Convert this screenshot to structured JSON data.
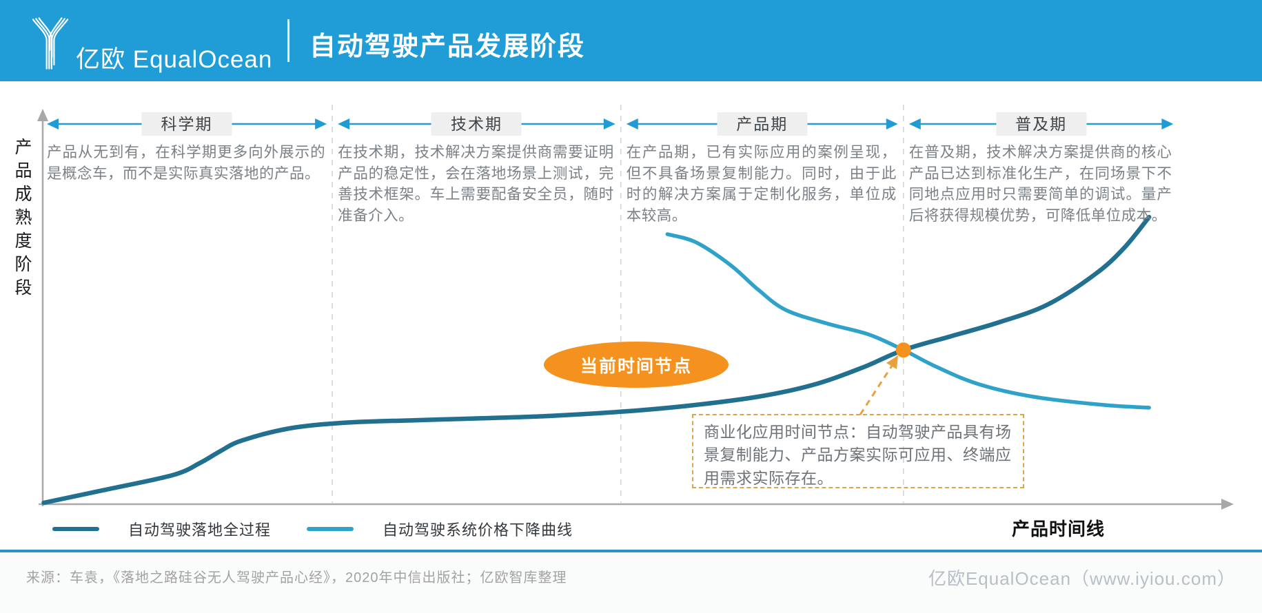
{
  "header": {
    "brand": "亿欧 EqualOcean",
    "title": "自动驾驶产品发展阶段"
  },
  "axes": {
    "y_label": "产品成熟度阶段",
    "x_label": "产品时间线"
  },
  "phases": [
    {
      "label": "科学期",
      "description": "产品从无到有，在科学期更多向外展示的是概念车，而不是实际真实落地的产品。"
    },
    {
      "label": "技术期",
      "description": "在技术期，技术解决方案提供商需要证明产品的稳定性，会在落地场景上测试，完善技术框架。车上需要配备安全员，随时准备介入。"
    },
    {
      "label": "产品期",
      "description": "在产品期，已有实际应用的案例呈现，但不具备场景复制能力。同时，由于此时的解决方案属于定制化服务，单位成本较高。"
    },
    {
      "label": "普及期",
      "description": "在普及期，技术解决方案提供商的核心产品已达到标准化生产，在同场景下不同地点应用时只需要简单的调试。量产后将获得规模优势，可降低单位成本。"
    }
  ],
  "annotations": {
    "current_node": "当前时间节点",
    "commercial_note": "商业化应用时间节点：自动驾驶产品具有场景复制能力、产品方案实际可应用、终端应用需求实际存在。"
  },
  "legend": [
    {
      "name": "自动驾驶落地全过程",
      "color": "#21708f"
    },
    {
      "name": "自动驾驶系统价格下降曲线",
      "color": "#2fa2c9"
    }
  ],
  "footer": {
    "source": "来源：车袁，《落地之路硅谷无人驾驶产品心经》，2020年中信出版社；亿欧智库整理",
    "site": "亿欧EqualOcean（www.iyiou.com）"
  },
  "colors": {
    "header_blue": "#209dd7",
    "phase_arrow_blue": "#1f9cd6",
    "accent_orange": "#f5921f",
    "note_dash_orange": "#dca54a",
    "axis_gray": "#a8a8a8",
    "divider_gray": "#d2d5d7",
    "footer_line_blue": "#2a93c8"
  },
  "chart_data": {
    "type": "line",
    "title": "自动驾驶产品发展阶段",
    "xlabel": "产品时间线",
    "ylabel": "产品成熟度阶段",
    "x_range": [
      0,
      100
    ],
    "y_range": [
      0,
      100
    ],
    "grid": false,
    "legend_position": "bottom-left",
    "phase_bounds_pct": [
      0,
      24.4,
      48.6,
      72.3,
      95.4
    ],
    "series": [
      {
        "name": "自动驾驶落地全过程",
        "color": "#21708f",
        "points": [
          [
            0.2,
            0
          ],
          [
            5.2,
            3.1
          ],
          [
            11,
            6.8
          ],
          [
            13.3,
            9.8
          ],
          [
            15,
            12.7
          ],
          [
            16.8,
            15.3
          ],
          [
            20.8,
            18.3
          ],
          [
            25.4,
            19.7
          ],
          [
            31.2,
            20.3
          ],
          [
            37,
            20.8
          ],
          [
            42.8,
            21.4
          ],
          [
            49,
            22.5
          ],
          [
            54.3,
            23.9
          ],
          [
            60.1,
            26.1
          ],
          [
            64.7,
            29
          ],
          [
            68.8,
            33.2
          ],
          [
            72.3,
            37.6
          ],
          [
            76.3,
            41
          ],
          [
            80.3,
            44.4
          ],
          [
            84.4,
            48.8
          ],
          [
            88.4,
            56.3
          ],
          [
            90.8,
            62.7
          ],
          [
            92.9,
            70.3
          ]
        ]
      },
      {
        "name": "自动驾驶系统价格下降曲线",
        "color": "#2fa2c9",
        "points": [
          [
            52.5,
            66.1
          ],
          [
            54.9,
            64.1
          ],
          [
            57.8,
            58.5
          ],
          [
            60.1,
            52.5
          ],
          [
            62.4,
            47.5
          ],
          [
            65.9,
            44.1
          ],
          [
            69.4,
            41.4
          ],
          [
            72.3,
            37.6
          ],
          [
            75.1,
            33.4
          ],
          [
            78.6,
            29.2
          ],
          [
            83.2,
            26.1
          ],
          [
            89,
            24.1
          ],
          [
            92.9,
            23.4
          ]
        ]
      }
    ],
    "intersection": {
      "x": 72.3,
      "y": 37.6,
      "label": "商业化应用时间节点"
    }
  }
}
